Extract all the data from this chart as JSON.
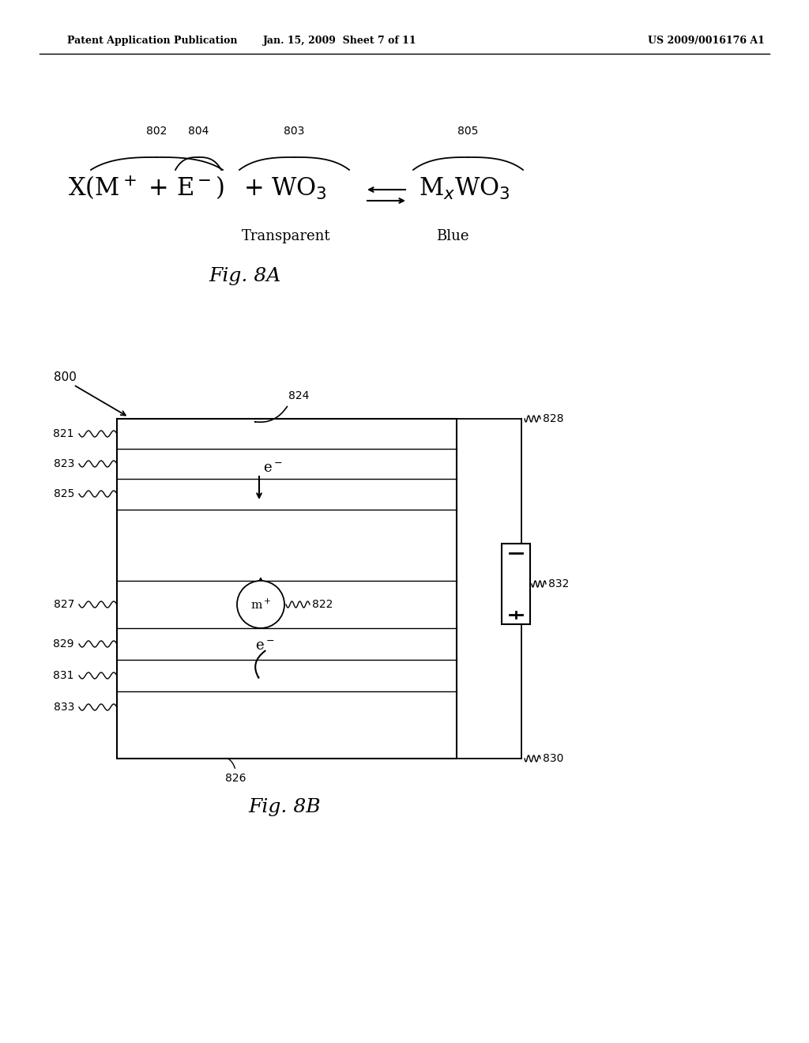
{
  "bg_color": "#ffffff",
  "header_left": "Patent Application Publication",
  "header_center": "Jan. 15, 2009  Sheet 7 of 11",
  "header_right": "US 2009/0016176 A1",
  "fig8a_caption": "Fig. 8A",
  "fig8b_caption": "Fig. 8B",
  "transparent_label": "Transparent",
  "blue_label": "Blue",
  "label_802": "802",
  "label_803": "803",
  "label_804": "804",
  "label_805": "805",
  "label_800": "800",
  "label_821": "821",
  "label_823": "823",
  "label_825": "825",
  "label_827": "827",
  "label_829": "829",
  "label_831": "831",
  "label_833": "833",
  "label_822": "822",
  "label_824": "824",
  "label_826": "826",
  "label_828": "828",
  "label_830": "830",
  "label_832": "832"
}
